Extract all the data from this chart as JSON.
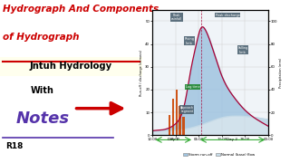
{
  "title_line1": "Hydrograph And Components",
  "title_line2": "of Hydrograph",
  "subtitle": "Jntuh Hydrology",
  "with_text": "With",
  "notes_text": "Notes",
  "r18_text": "R18",
  "arrow_color": "#cc0000",
  "title_color": "#cc0000",
  "subtitle_bg": "#ffffee",
  "notes_color": "#5533aa",
  "bg_color": "#ffffff",
  "chart_bg": "#f0f4f8",
  "hydrograph_line_color": "#aa0033",
  "hydrograph_fill_blue": "#a0c4e0",
  "baseflow_fill": "#c8dce8",
  "rain_bar_color": "#cc4400",
  "label_bg": "#4a6070",
  "lag_bg": "#228833",
  "day_line_color": "#33aa33",
  "grid_color": "#cccccc",
  "underline_color": "#cc0000",
  "notes_underline": "#5533aa"
}
